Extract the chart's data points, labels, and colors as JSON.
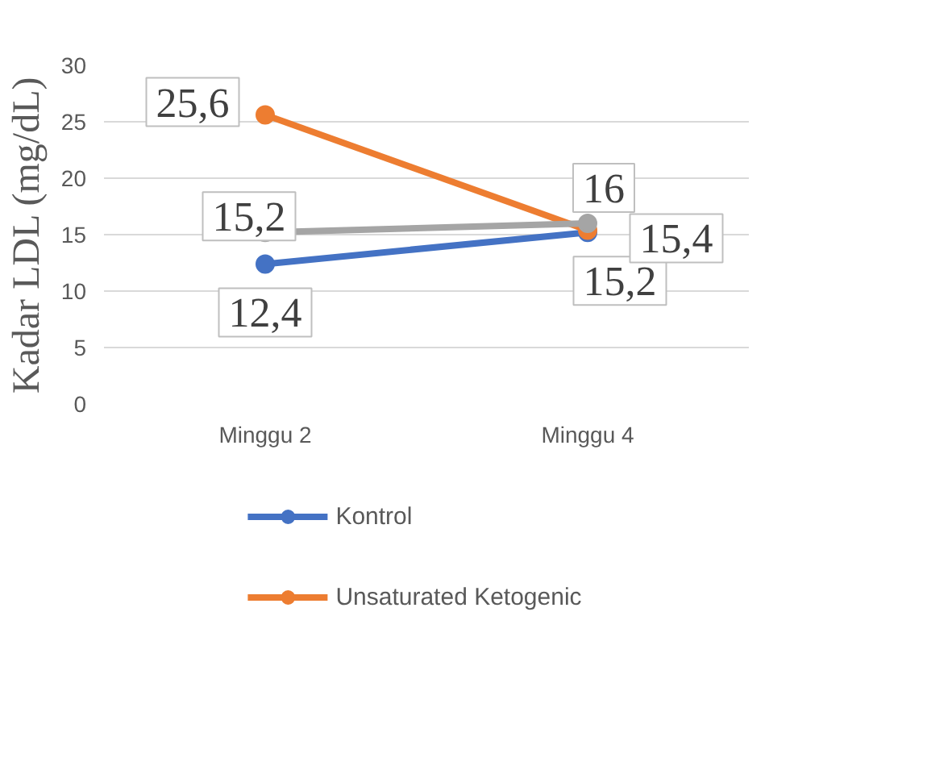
{
  "chart_data": {
    "type": "line",
    "ylabel": "Kadar LDL (mg/dL)",
    "categories": [
      "Minggu 2",
      "Minggu 4"
    ],
    "series": [
      {
        "name": "Kontrol",
        "color": "#4472c4",
        "values": [
          12.4,
          15.2
        ],
        "value_labels": [
          "12,4",
          "15,2"
        ]
      },
      {
        "name": "Unsaturated Ketogenic",
        "color": "#ed7d31",
        "values": [
          25.6,
          15.4
        ],
        "value_labels": [
          "25,6",
          "15,4"
        ]
      },
      {
        "color": "#a5a5a5",
        "values": [
          15.2,
          16
        ],
        "value_labels": [
          "15,2",
          "16"
        ]
      }
    ],
    "ylim": [
      0,
      30
    ],
    "yticks": [
      0,
      5,
      10,
      15,
      20,
      25,
      30
    ],
    "grid": "y",
    "legend": "bottom",
    "marker": "circle",
    "line_style": "solid"
  }
}
